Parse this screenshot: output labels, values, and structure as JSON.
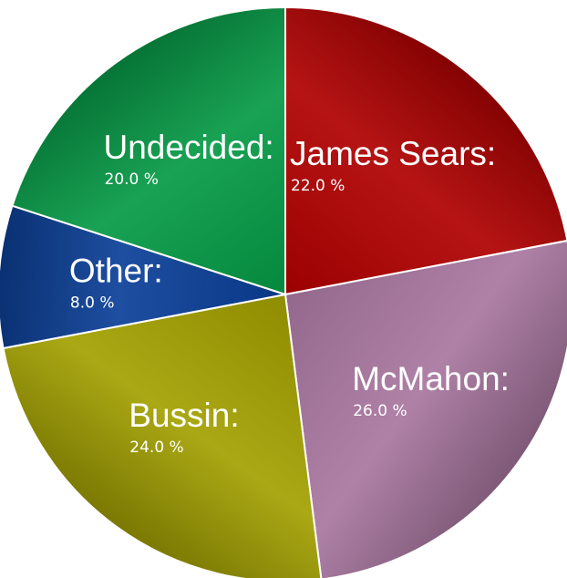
{
  "chart_data": {
    "type": "pie",
    "title": "",
    "start": "12 o'clock, clockwise",
    "slices": [
      {
        "name": "James Sears:",
        "value": 22.0,
        "value_label": "22.0 %",
        "color": "#b00000"
      },
      {
        "name": "McMahon:",
        "value": 26.0,
        "value_label": "26.0 %",
        "color": "#a8769f"
      },
      {
        "name": "Bussin:",
        "value": 24.0,
        "value_label": "24.0 %",
        "color": "#a3a000"
      },
      {
        "name": "Other:",
        "value": 8.0,
        "value_label": "8.0 %",
        "color": "#0a3f98"
      },
      {
        "name": "Undecided:",
        "value": 20.0,
        "value_label": "20.0 %",
        "color": "#059a45"
      }
    ]
  }
}
